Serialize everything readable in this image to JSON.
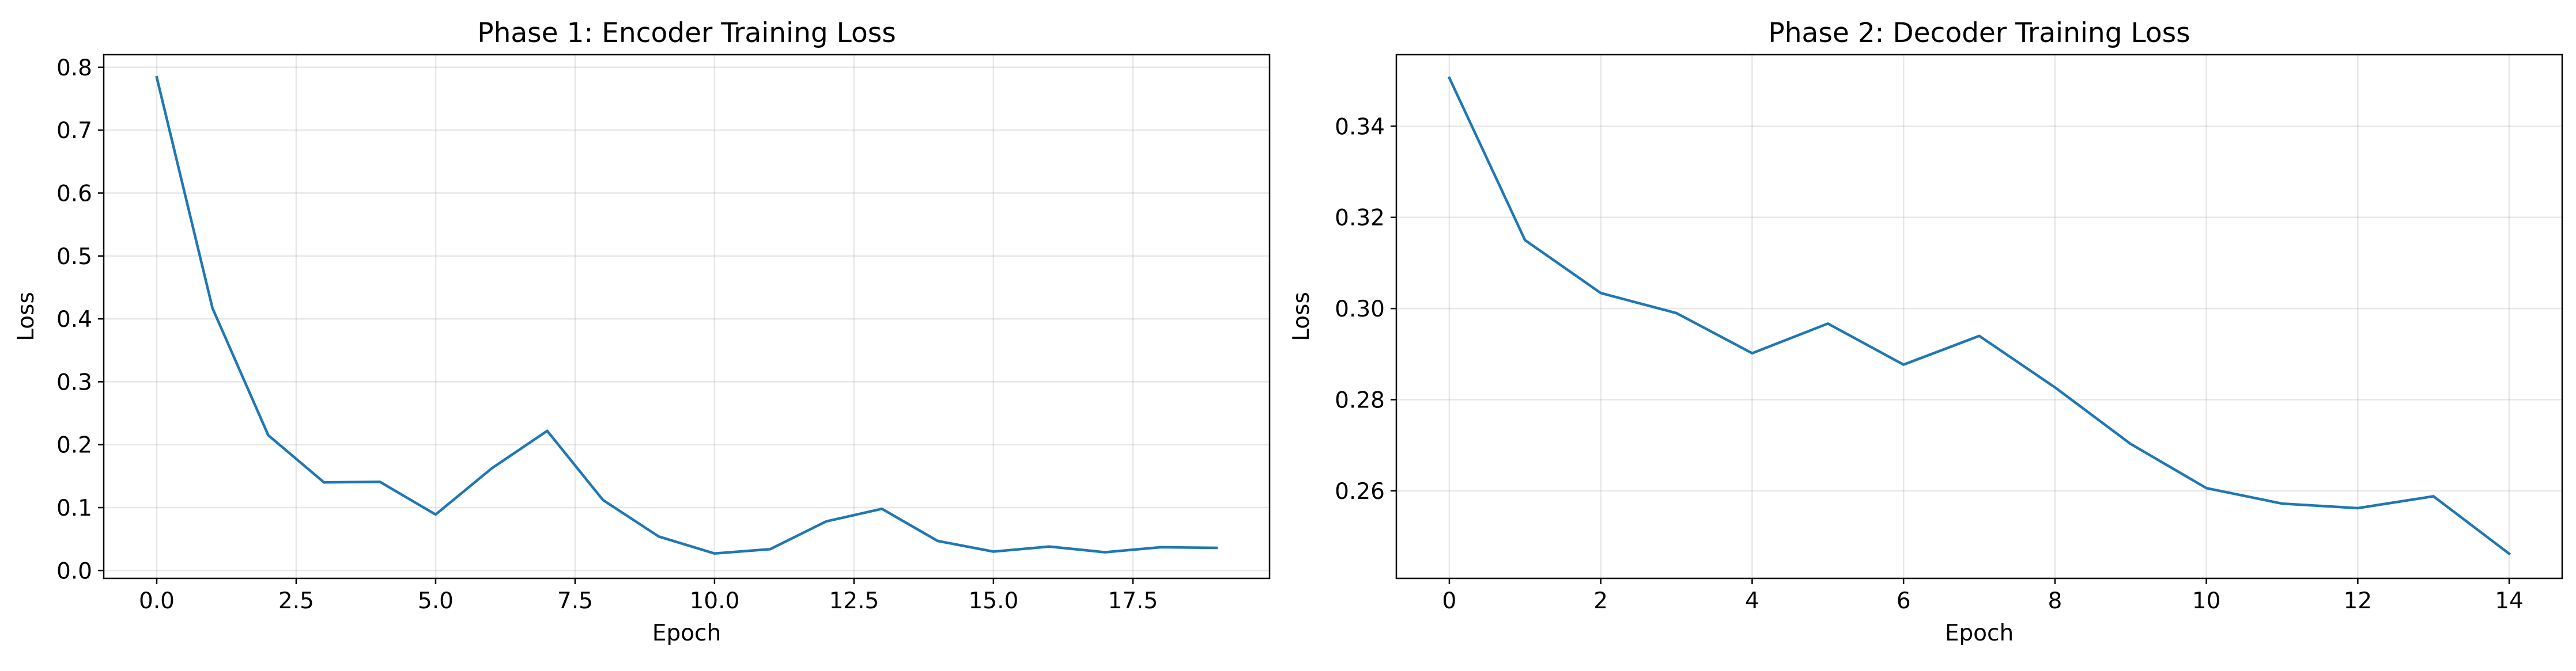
{
  "chart_data": [
    {
      "type": "line",
      "title": "Phase 1: Encoder Training Loss",
      "xlabel": "Epoch",
      "ylabel": "Loss",
      "xlim": [
        -0.95,
        19.95
      ],
      "ylim": [
        -0.0125,
        0.82
      ],
      "x_ticks": [
        0,
        2.5,
        5,
        7.5,
        10,
        12.5,
        15,
        17.5
      ],
      "x_tick_labels": [
        "0.0",
        "2.5",
        "5.0",
        "7.5",
        "10.0",
        "12.5",
        "15.0",
        "17.5"
      ],
      "y_ticks": [
        0,
        0.1,
        0.2,
        0.3,
        0.4,
        0.5,
        0.6,
        0.7,
        0.8
      ],
      "y_tick_labels": [
        "0.0",
        "0.1",
        "0.2",
        "0.3",
        "0.4",
        "0.5",
        "0.6",
        "0.7",
        "0.8"
      ],
      "grid": true,
      "line_color": "#1f77b4",
      "series": [
        {
          "x": [
            0,
            1,
            2,
            3,
            4,
            5,
            6,
            7,
            8,
            9,
            10,
            11,
            12,
            13,
            14,
            15,
            16,
            17,
            18,
            19
          ],
          "y": [
            0.784,
            0.417,
            0.215,
            0.14,
            0.141,
            0.089,
            0.162,
            0.222,
            0.112,
            0.054,
            0.027,
            0.034,
            0.078,
            0.098,
            0.047,
            0.03,
            0.038,
            0.029,
            0.037,
            0.036
          ]
        }
      ]
    },
    {
      "type": "line",
      "title": "Phase 2: Decoder Training Loss",
      "xlabel": "Epoch",
      "ylabel": "Loss",
      "xlim": [
        -0.7,
        14.7
      ],
      "ylim": [
        0.2408,
        0.3557
      ],
      "x_ticks": [
        0,
        2,
        4,
        6,
        8,
        10,
        12,
        14
      ],
      "x_tick_labels": [
        "0",
        "2",
        "4",
        "6",
        "8",
        "10",
        "12",
        "14"
      ],
      "y_ticks": [
        0.26,
        0.28,
        0.3,
        0.32,
        0.34
      ],
      "y_tick_labels": [
        "0.26",
        "0.28",
        "0.30",
        "0.32",
        "0.34"
      ],
      "grid": true,
      "line_color": "#1f77b4",
      "series": [
        {
          "x": [
            0,
            1,
            2,
            3,
            4,
            5,
            6,
            7,
            8,
            9,
            10,
            11,
            12,
            13,
            14
          ],
          "y": [
            0.3506,
            0.315,
            0.3034,
            0.299,
            0.2902,
            0.2967,
            0.2877,
            0.294,
            0.2827,
            0.2703,
            0.2606,
            0.2572,
            0.2562,
            0.2588,
            0.2462
          ]
        }
      ]
    }
  ]
}
